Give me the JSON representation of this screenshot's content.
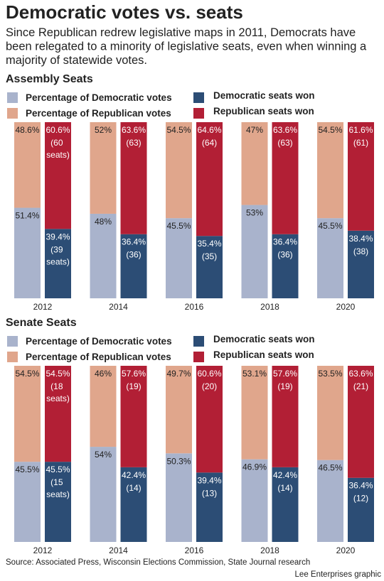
{
  "title": "Democratic votes vs. seats",
  "subtitle": "Since Republican redrew legislative maps in 2011, Democrats have been relegated to a minority of legislative seats, even when winning a majority of statewide votes.",
  "source": "Source: Associated Press, Wisconsin Elections Commission, State Journal research",
  "credit": "Lee Enterprises graphic",
  "chart_data": [
    {
      "type": "stacked_bar",
      "title": "Assembly Seats",
      "categories": [
        "2012",
        "2014",
        "2016",
        "2018",
        "2020"
      ],
      "ylim": [
        0,
        100
      ],
      "series": [
        {
          "name": "Percentage of Democratic votes",
          "stack": "votes",
          "color": "#a9b3cc",
          "values": [
            51.4,
            48,
            45.5,
            53,
            45.5
          ],
          "value_labels": [
            "51.4%",
            "48%",
            "45.5%",
            "53%",
            "45.5%"
          ]
        },
        {
          "name": "Percentage of Republican votes",
          "stack": "votes",
          "color": "#e0a68c",
          "values": [
            48.6,
            52,
            54.5,
            47,
            54.5
          ],
          "value_labels": [
            "48.6%",
            "52%",
            "54.5%",
            "47%",
            "54.5%"
          ]
        },
        {
          "name": "Democratic seats won",
          "stack": "seats",
          "color": "#2c4d75",
          "values": [
            39.4,
            36.4,
            35.4,
            36.4,
            38.4
          ],
          "value_labels": [
            "39.4%",
            "36.4%",
            "35.4%",
            "36.4%",
            "38.4%"
          ],
          "seat_labels": [
            "(39 seats)",
            "(36)",
            "(35)",
            "(36)",
            "(38)"
          ]
        },
        {
          "name": "Republican seats won",
          "stack": "seats",
          "color": "#b21f35",
          "values": [
            60.6,
            63.6,
            64.6,
            63.6,
            61.6
          ],
          "value_labels": [
            "60.6%",
            "63.6%",
            "64.6%",
            "63.6%",
            "61.6%"
          ],
          "seat_labels": [
            "(60 seats)",
            "(63)",
            "(64)",
            "(63)",
            "(61)"
          ]
        }
      ]
    },
    {
      "type": "stacked_bar",
      "title": "Senate Seats",
      "categories": [
        "2012",
        "2014",
        "2016",
        "2018",
        "2020"
      ],
      "ylim": [
        0,
        100
      ],
      "series": [
        {
          "name": "Percentage of Democratic votes",
          "stack": "votes",
          "color": "#a9b3cc",
          "values": [
            45.5,
            54,
            50.3,
            46.9,
            46.5
          ],
          "value_labels": [
            "45.5%",
            "54%",
            "50.3%",
            "46.9%",
            "46.5%"
          ]
        },
        {
          "name": "Percentage of Republican votes",
          "stack": "votes",
          "color": "#e0a68c",
          "values": [
            54.5,
            46,
            49.7,
            53.1,
            53.5
          ],
          "value_labels": [
            "54.5%",
            "46%",
            "49.7%",
            "53.1%",
            "53.5%"
          ]
        },
        {
          "name": "Democratic seats won",
          "stack": "seats",
          "color": "#2c4d75",
          "values": [
            45.5,
            42.4,
            39.4,
            42.4,
            36.4
          ],
          "value_labels": [
            "45.5%",
            "42.4%",
            "39.4%",
            "42.4%",
            "36.4%"
          ],
          "seat_labels": [
            "(15 seats)",
            "(14)",
            "(13)",
            "(14)",
            "(12)"
          ]
        },
        {
          "name": "Republican seats won",
          "stack": "seats",
          "color": "#b21f35",
          "values": [
            54.5,
            57.6,
            60.6,
            57.6,
            63.6
          ],
          "value_labels": [
            "54.5%",
            "57.6%",
            "60.6%",
            "57.6%",
            "63.6%"
          ],
          "seat_labels": [
            "(18 seats)",
            "(19)",
            "(20)",
            "(19)",
            "(21)"
          ]
        }
      ]
    }
  ]
}
